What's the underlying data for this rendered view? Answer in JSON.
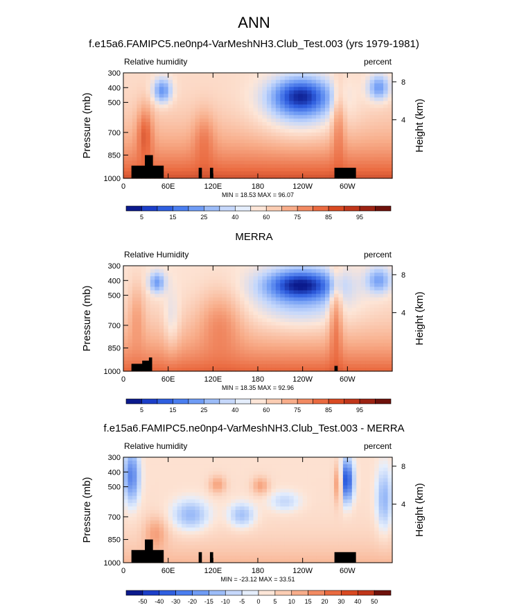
{
  "page_title": "ANN",
  "colors": {
    "frame": "#000000",
    "topography": "#000000"
  },
  "chart_data": [
    {
      "type": "heatmap",
      "title": "f.e15a6.FAMIPC5.ne0np4-VarMeshNH3.Club_Test.003 (yrs 1979-1981)",
      "left_label": "Relative humidity",
      "right_label": "percent",
      "ylabel": "Pressure (mb)",
      "y2label": "Height (km)",
      "yticks": [
        "300",
        "400",
        "500",
        "700",
        "850",
        "1000"
      ],
      "y2ticks": [
        "8",
        "4"
      ],
      "xticks": [
        "0",
        "60E",
        "120E",
        "180",
        "120W",
        "60W"
      ],
      "stats": "MIN =  18.53   MAX =  96.07",
      "colorbar": {
        "labels": [
          "5",
          "15",
          "25",
          "40",
          "60",
          "75",
          "85",
          "95"
        ],
        "colors": [
          "#0b1a8c",
          "#1c3fc9",
          "#2f5fe0",
          "#4a7ef0",
          "#6f9cf5",
          "#9cbcf8",
          "#c6d8fb",
          "#e5eefc",
          "#fde6d8",
          "#fbcdb3",
          "#f8ad8a",
          "#f28a62",
          "#ea6a40",
          "#d94a22",
          "#c0361a",
          "#9c2313",
          "#6e110b"
        ],
        "label_positions": [
          1,
          3,
          5,
          7,
          9,
          11,
          13,
          15
        ]
      },
      "field": "model"
    },
    {
      "type": "heatmap",
      "title": "MERRA",
      "left_label": "Relative Humidity",
      "right_label": "percent",
      "ylabel": "Pressure (mb)",
      "y2label": "Height (km)",
      "yticks": [
        "300",
        "400",
        "500",
        "700",
        "850",
        "1000"
      ],
      "y2ticks": [
        "8",
        "4"
      ],
      "xticks": [
        "0",
        "60E",
        "120E",
        "180",
        "120W",
        "60W"
      ],
      "stats": "MIN =  18.35   MAX =  92.96",
      "colorbar": {
        "labels": [
          "5",
          "15",
          "25",
          "40",
          "60",
          "75",
          "85",
          "95"
        ],
        "colors": [
          "#0b1a8c",
          "#1c3fc9",
          "#2f5fe0",
          "#4a7ef0",
          "#6f9cf5",
          "#9cbcf8",
          "#c6d8fb",
          "#e5eefc",
          "#fde6d8",
          "#fbcdb3",
          "#f8ad8a",
          "#f28a62",
          "#ea6a40",
          "#d94a22",
          "#c0361a",
          "#9c2313",
          "#6e110b"
        ],
        "label_positions": [
          1,
          3,
          5,
          7,
          9,
          11,
          13,
          15
        ]
      },
      "field": "merra"
    },
    {
      "type": "heatmap",
      "title": "f.e15a6.FAMIPC5.ne0np4-VarMeshNH3.Club_Test.003 - MERRA",
      "left_label": "Relative humidity",
      "right_label": "percent",
      "ylabel": "Pressure (mb)",
      "y2label": "Height (km)",
      "yticks": [
        "300",
        "400",
        "500",
        "700",
        "850",
        "1000"
      ],
      "y2ticks": [
        "8",
        "4"
      ],
      "xticks": [
        "0",
        "60E",
        "120E",
        "180",
        "120W",
        "60W"
      ],
      "stats": "MIN = -23.12   MAX =  33.51",
      "colorbar": {
        "labels": [
          "-50",
          "-40",
          "-30",
          "-20",
          "-15",
          "-10",
          "-5",
          "0",
          "5",
          "10",
          "15",
          "20",
          "30",
          "40",
          "50"
        ],
        "colors": [
          "#0b1a8c",
          "#1c3fc9",
          "#2f5fe0",
          "#4a7ef0",
          "#6f9cf5",
          "#9cbcf8",
          "#c6d8fb",
          "#e5eefc",
          "#fde6d8",
          "#fbcdb3",
          "#f8ad8a",
          "#f28a62",
          "#ea6a40",
          "#d94a22",
          "#c0361a",
          "#6e110b"
        ],
        "label_positions": [
          1,
          2,
          3,
          4,
          5,
          6,
          7,
          8,
          9,
          10,
          11,
          12,
          13,
          14,
          15
        ]
      },
      "field": "diff"
    }
  ]
}
